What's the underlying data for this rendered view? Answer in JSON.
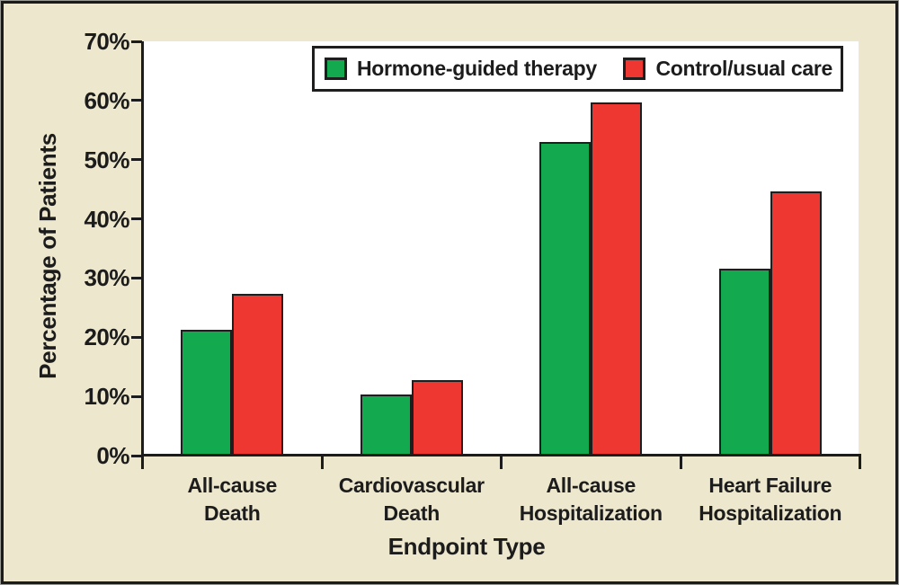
{
  "figure": {
    "background_color": "#ECE7CD",
    "frame_border_color": "#1B1B1B",
    "plot_background_color": "#FFFFFF",
    "axis_color": "#1C1C1C"
  },
  "chart_data": {
    "type": "bar",
    "title": "",
    "xlabel": "Endpoint Type",
    "ylabel": "Percentage of Patients",
    "categories": [
      "All-cause\nDeath",
      "Cardiovascular\nDeath",
      "All-cause\nHospitalization",
      "Heart Failure\nHospitalization"
    ],
    "series": [
      {
        "name": "Hormone-guided therapy",
        "color": "#12A94F",
        "values": [
          21.2,
          10.4,
          53.0,
          31.6
        ]
      },
      {
        "name": "Control/usual care",
        "color": "#EE3731",
        "values": [
          27.3,
          12.8,
          59.7,
          44.7
        ]
      }
    ],
    "ylim": [
      0,
      70
    ],
    "y_tick_step": 10,
    "y_tick_labels": [
      "0%",
      "10%",
      "20%",
      "30%",
      "40%",
      "50%",
      "60%",
      "70%"
    ],
    "grid": false,
    "legend_position": "top-center-inside"
  }
}
